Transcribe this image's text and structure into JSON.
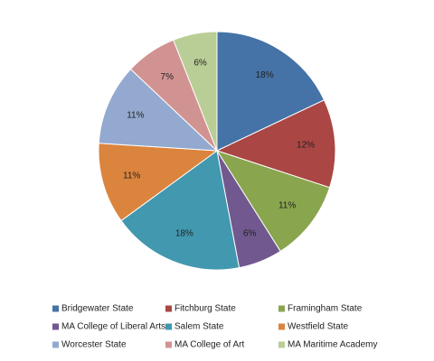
{
  "chart_data": {
    "type": "pie",
    "categories": [
      "Bridgewater State",
      "Fitchburg State",
      "Framingham State",
      "MA College of Liberal Arts",
      "Salem State",
      "Westfield State",
      "Worcester State",
      "MA College of Art",
      "MA Maritime Academy"
    ],
    "values": [
      18,
      12,
      11,
      6,
      18,
      11,
      11,
      7,
      6
    ],
    "value_labels": [
      "18%",
      "12%",
      "11%",
      "6%",
      "18%",
      "11%",
      "11%",
      "7%",
      "6%"
    ],
    "colors": [
      "#4572a7",
      "#aa4643",
      "#89a54e",
      "#71588f",
      "#4198af",
      "#db843d",
      "#93a9cf",
      "#d19392",
      "#b9cd96"
    ],
    "legend": "bottom"
  }
}
